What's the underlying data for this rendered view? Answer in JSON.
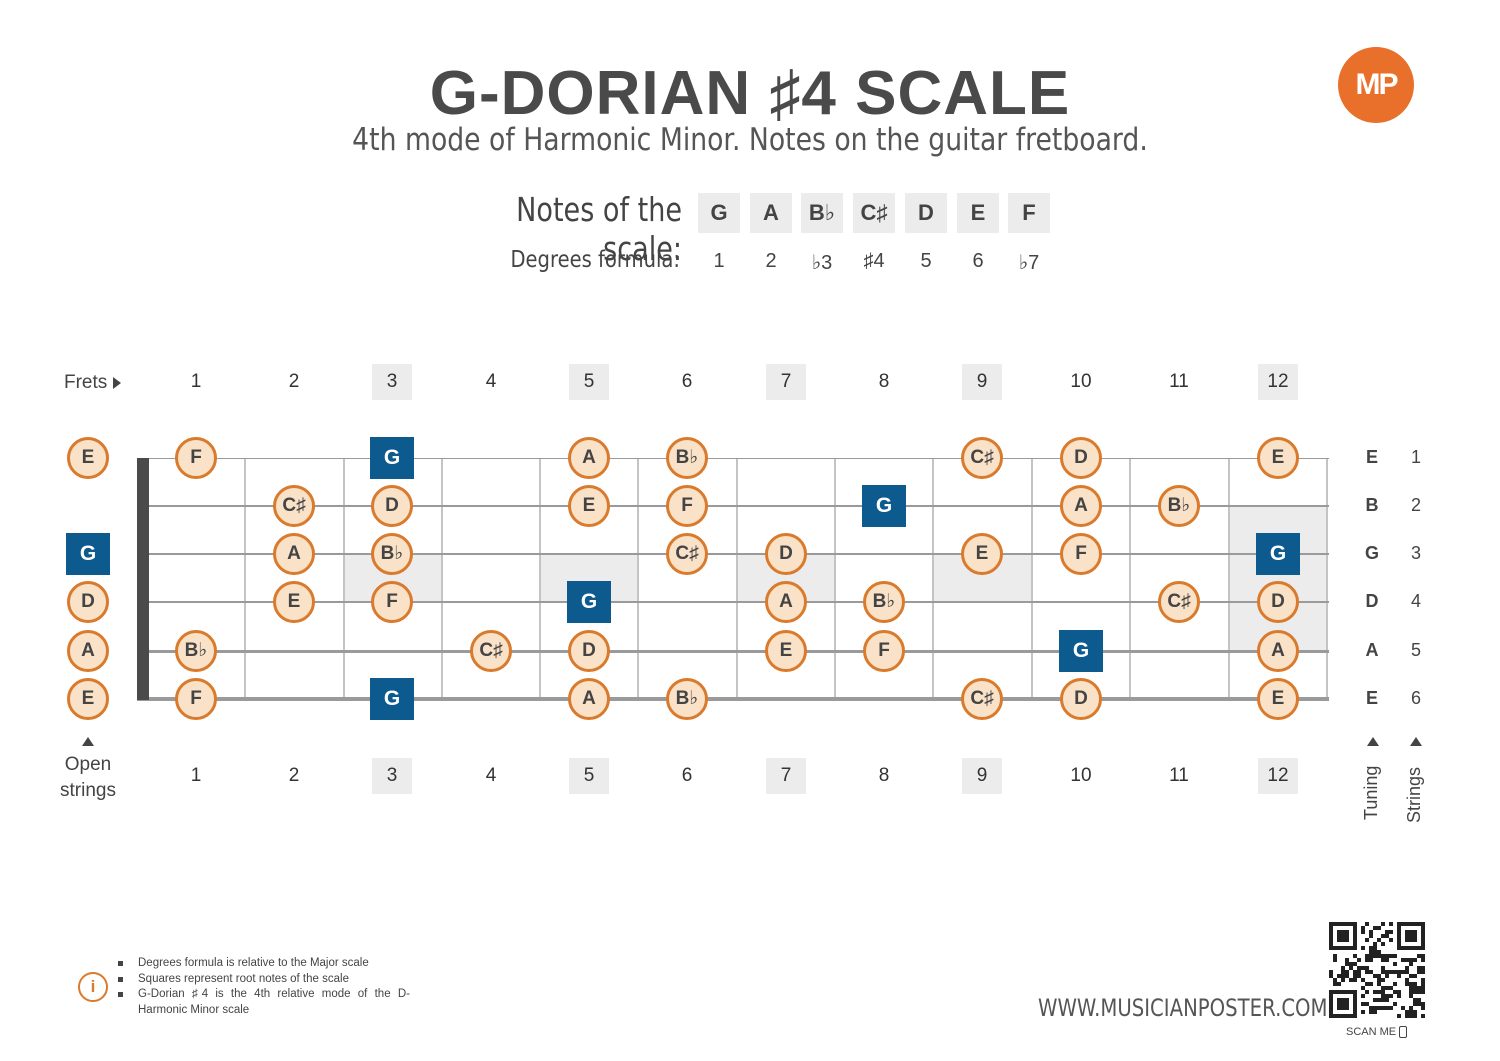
{
  "header": {
    "title": "G-DORIAN ♯4 SCALE",
    "subtitle": "4th mode of Harmonic Minor. Notes on the guitar fretboard.",
    "logo_text": "MP",
    "logo_color": "#e8702a"
  },
  "scale": {
    "notes_label": "Notes of the scale:",
    "degrees_label": "Degrees formula:",
    "notes": [
      "G",
      "A",
      "B♭",
      "C♯",
      "D",
      "E",
      "F"
    ],
    "degrees": [
      "1",
      "2",
      "♭3",
      "♯4",
      "5",
      "6",
      "♭7"
    ]
  },
  "fretboard": {
    "frets_label": "Frets",
    "fret_numbers": [
      "1",
      "2",
      "3",
      "4",
      "5",
      "6",
      "7",
      "8",
      "9",
      "10",
      "11",
      "12"
    ],
    "highlighted_frets": [
      3,
      5,
      7,
      9,
      12
    ],
    "open_strings_label": "Open strings",
    "tuning_label": "Tuning",
    "strings_label": "Strings",
    "tuning": [
      "E",
      "B",
      "G",
      "D",
      "A",
      "E"
    ],
    "string_numbers": [
      "1",
      "2",
      "3",
      "4",
      "5",
      "6"
    ],
    "root_note": "G",
    "root_color": "#0d5a8f",
    "note_border_color": "#d97a2c",
    "note_fill_color": "#fae2c8",
    "strings": [
      {
        "open": "E",
        "frets": [
          "F",
          "",
          "G",
          "",
          "A",
          "B♭",
          "",
          "",
          "C♯",
          "D",
          "",
          "E"
        ]
      },
      {
        "open": "",
        "frets": [
          "",
          "C♯",
          "D",
          "",
          "E",
          "F",
          "",
          "G",
          "",
          "A",
          "B♭",
          ""
        ]
      },
      {
        "open": "G",
        "frets": [
          "",
          "A",
          "B♭",
          "",
          "",
          "C♯",
          "D",
          "",
          "E",
          "F",
          "",
          "G"
        ]
      },
      {
        "open": "D",
        "frets": [
          "",
          "E",
          "F",
          "",
          "G",
          "",
          "A",
          "B♭",
          "",
          "",
          "C♯",
          "D"
        ]
      },
      {
        "open": "A",
        "frets": [
          "B♭",
          "",
          "",
          "C♯",
          "D",
          "",
          "E",
          "F",
          "",
          "G",
          "",
          "A"
        ]
      },
      {
        "open": "E",
        "frets": [
          "F",
          "",
          "G",
          "",
          "A",
          "B♭",
          "",
          "",
          "C♯",
          "D",
          "",
          "E"
        ]
      }
    ]
  },
  "footnotes": [
    "Degrees formula is relative to the Major scale",
    "Squares represent root notes of the scale",
    "G-Dorian ♯4 is the 4th relative mode of the D-Harmonic Minor scale"
  ],
  "footer": {
    "website": "WWW.MUSICIANPOSTER.COM",
    "scan_label": "SCAN ME"
  }
}
